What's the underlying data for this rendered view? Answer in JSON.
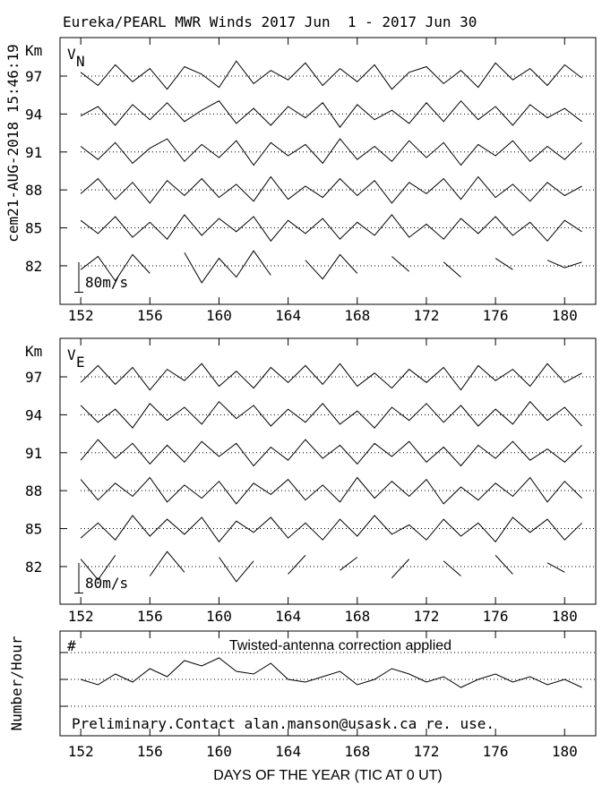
{
  "title": "Eureka/PEARL MWR Winds 2017 Jun  1 - 2017 Jun 30",
  "timestamp": "cem21-AUG-2018 15:46:19",
  "chart_data": [
    {
      "type": "line",
      "panel_label": "V",
      "panel_subscript": "N",
      "ylabel": "Km",
      "x": [
        152,
        153,
        154,
        155,
        156,
        157,
        158,
        159,
        160,
        161,
        162,
        163,
        164,
        165,
        166,
        167,
        168,
        169,
        170,
        171,
        172,
        173,
        174,
        175,
        176,
        177,
        178,
        179,
        180,
        181
      ],
      "xlim": [
        150.8,
        181.8
      ],
      "xticks": [
        152,
        156,
        160,
        164,
        168,
        172,
        176,
        180
      ],
      "yticks": [
        97,
        94,
        91,
        88,
        85,
        82
      ],
      "scale_bar": {
        "value": 80,
        "label": "80m/s"
      },
      "series": [
        {
          "values": [
            10,
            -25,
            30,
            -15,
            20,
            -35,
            25,
            5,
            -30,
            40,
            -20,
            15,
            -10,
            35,
            -25,
            20,
            -15,
            30,
            -35,
            10,
            25,
            -20,
            15,
            -30,
            35,
            -10,
            20,
            -25,
            30,
            -5
          ]
        },
        {
          "values": [
            -5,
            20,
            -30,
            25,
            -15,
            30,
            -20,
            10,
            35,
            -25,
            15,
            -30,
            20,
            -10,
            30,
            -35,
            25,
            -15,
            10,
            -25,
            30,
            -20,
            35,
            -15,
            20,
            -30,
            25,
            -10,
            15,
            -20
          ]
        },
        {
          "values": [
            15,
            -20,
            25,
            -30,
            10,
            35,
            -25,
            20,
            -15,
            30,
            -35,
            25,
            -10,
            20,
            -30,
            35,
            -20,
            15,
            -25,
            30,
            -15,
            25,
            -35,
            20,
            -10,
            30,
            -25,
            15,
            -20,
            25
          ]
        },
        {
          "values": [
            -10,
            30,
            -25,
            20,
            -35,
            25,
            -15,
            30,
            -20,
            15,
            -30,
            35,
            -25,
            10,
            -20,
            30,
            -15,
            25,
            -35,
            20,
            -10,
            30,
            -25,
            35,
            -20,
            15,
            -30,
            20,
            -15,
            10
          ]
        },
        {
          "values": [
            20,
            -15,
            30,
            -25,
            15,
            -30,
            35,
            -20,
            25,
            -10,
            30,
            -35,
            20,
            -15,
            25,
            -30,
            15,
            -20,
            35,
            -25,
            10,
            -30,
            25,
            -15,
            30,
            -20,
            15,
            -35,
            20,
            -10
          ]
        },
        {
          "values": [
            -10,
            25,
            -40,
            30,
            -20,
            null,
            35,
            -45,
            20,
            -30,
            40,
            -25,
            null,
            15,
            -35,
            30,
            -20,
            null,
            25,
            -15,
            null,
            10,
            -30,
            null,
            20,
            -10,
            null,
            15,
            -5,
            10
          ]
        }
      ]
    },
    {
      "type": "line",
      "panel_label": "V",
      "panel_subscript": "E",
      "ylabel": "Km",
      "x": [
        152,
        153,
        154,
        155,
        156,
        157,
        158,
        159,
        160,
        161,
        162,
        163,
        164,
        165,
        166,
        167,
        168,
        169,
        170,
        171,
        172,
        173,
        174,
        175,
        176,
        177,
        178,
        179,
        180,
        181
      ],
      "xlim": [
        150.8,
        181.8
      ],
      "xticks": [
        152,
        156,
        160,
        164,
        168,
        172,
        176,
        180
      ],
      "yticks": [
        97,
        94,
        91,
        88,
        85,
        82
      ],
      "scale_bar": {
        "value": 80,
        "label": "80m/s"
      },
      "series": [
        {
          "values": [
            -15,
            30,
            -20,
            25,
            -35,
            20,
            -10,
            35,
            -25,
            15,
            -30,
            25,
            -15,
            30,
            -20,
            35,
            -25,
            10,
            -30,
            20,
            -15,
            25,
            -35,
            30,
            -10,
            20,
            -25,
            35,
            -15,
            10
          ]
        },
        {
          "values": [
            25,
            -20,
            15,
            -35,
            30,
            -15,
            20,
            -25,
            35,
            -10,
            25,
            -30,
            15,
            -20,
            30,
            -25,
            10,
            -35,
            20,
            -15,
            30,
            -20,
            25,
            -30,
            15,
            -25,
            35,
            -15,
            20,
            -30
          ]
        },
        {
          "values": [
            -20,
            35,
            -15,
            25,
            -30,
            20,
            -25,
            30,
            -10,
            25,
            -35,
            15,
            -20,
            35,
            -15,
            20,
            -30,
            25,
            -10,
            30,
            -25,
            15,
            -35,
            20,
            -15,
            30,
            -20,
            10,
            -25,
            20
          ]
        },
        {
          "values": [
            30,
            -25,
            20,
            -15,
            35,
            -30,
            15,
            -20,
            25,
            -35,
            20,
            -10,
            30,
            -25,
            15,
            -30,
            35,
            -20,
            25,
            -15,
            30,
            -35,
            10,
            -25,
            20,
            -15,
            35,
            -30,
            25,
            -20
          ]
        },
        {
          "values": [
            -25,
            15,
            -30,
            35,
            -20,
            25,
            -15,
            30,
            -35,
            20,
            -10,
            30,
            -25,
            15,
            -30,
            25,
            -20,
            35,
            -15,
            10,
            -30,
            25,
            -20,
            15,
            -35,
            30,
            -10,
            25,
            -30,
            15
          ]
        },
        {
          "values": [
            20,
            -35,
            30,
            null,
            -25,
            40,
            -15,
            null,
            25,
            -40,
            15,
            null,
            -20,
            30,
            null,
            -10,
            25,
            null,
            -30,
            20,
            null,
            15,
            -25,
            null,
            30,
            -20,
            null,
            10,
            -15,
            null
          ]
        }
      ]
    },
    {
      "type": "line",
      "panel_label": "#",
      "ylabel": "Number/Hour",
      "xlabel": "DAYS OF THE YEAR (TIC AT 0 UT)",
      "note": "Twisted-antenna correction applied",
      "footer": "Preliminary.Contact alan.manson@usask.ca re. use.",
      "x": [
        152,
        153,
        154,
        155,
        156,
        157,
        158,
        159,
        160,
        161,
        162,
        163,
        164,
        165,
        166,
        167,
        168,
        169,
        170,
        171,
        172,
        173,
        174,
        175,
        176,
        177,
        178,
        179,
        180,
        181
      ],
      "xlim": [
        150.8,
        181.8
      ],
      "xticks": [
        152,
        156,
        160,
        164,
        168,
        172,
        176,
        180
      ],
      "ylim": [
        -1,
        38
      ],
      "gridlines": [
        10,
        20,
        30
      ],
      "values": [
        20,
        18,
        22,
        19,
        24,
        21,
        27,
        25,
        28,
        23,
        22,
        26,
        20,
        19,
        21,
        23,
        18,
        20,
        24,
        22,
        19,
        21,
        17,
        20,
        22,
        19,
        21,
        18,
        20,
        17
      ]
    }
  ]
}
